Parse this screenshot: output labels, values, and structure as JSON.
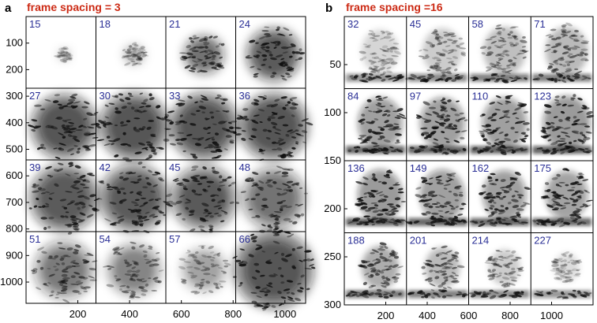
{
  "panel_a": {
    "letter": "a",
    "title": "frame spacing = 3",
    "frames": [
      "15",
      "18",
      "21",
      "24",
      "27",
      "30",
      "33",
      "36",
      "39",
      "42",
      "45",
      "48",
      "51",
      "54",
      "57",
      "66"
    ],
    "y_ticks": [
      "100",
      "200",
      "300",
      "400",
      "500",
      "600",
      "700",
      "800",
      "900",
      "1000"
    ],
    "x_ticks": [
      "200",
      "400",
      "600",
      "800",
      "1000"
    ]
  },
  "panel_b": {
    "letter": "b",
    "title": "frame spacing =16",
    "frames": [
      "32",
      "45",
      "58",
      "71",
      "84",
      "97",
      "110",
      "123",
      "136",
      "149",
      "162",
      "175",
      "188",
      "201",
      "214",
      "227"
    ],
    "y_ticks": [
      "50",
      "100",
      "150",
      "200",
      "250",
      "300"
    ],
    "x_ticks": [
      "200",
      "400",
      "600",
      "800",
      "1000"
    ]
  },
  "colors": {
    "title": "#cc2a14",
    "frame_label": "#2a2f96",
    "blob": "#111111"
  }
}
